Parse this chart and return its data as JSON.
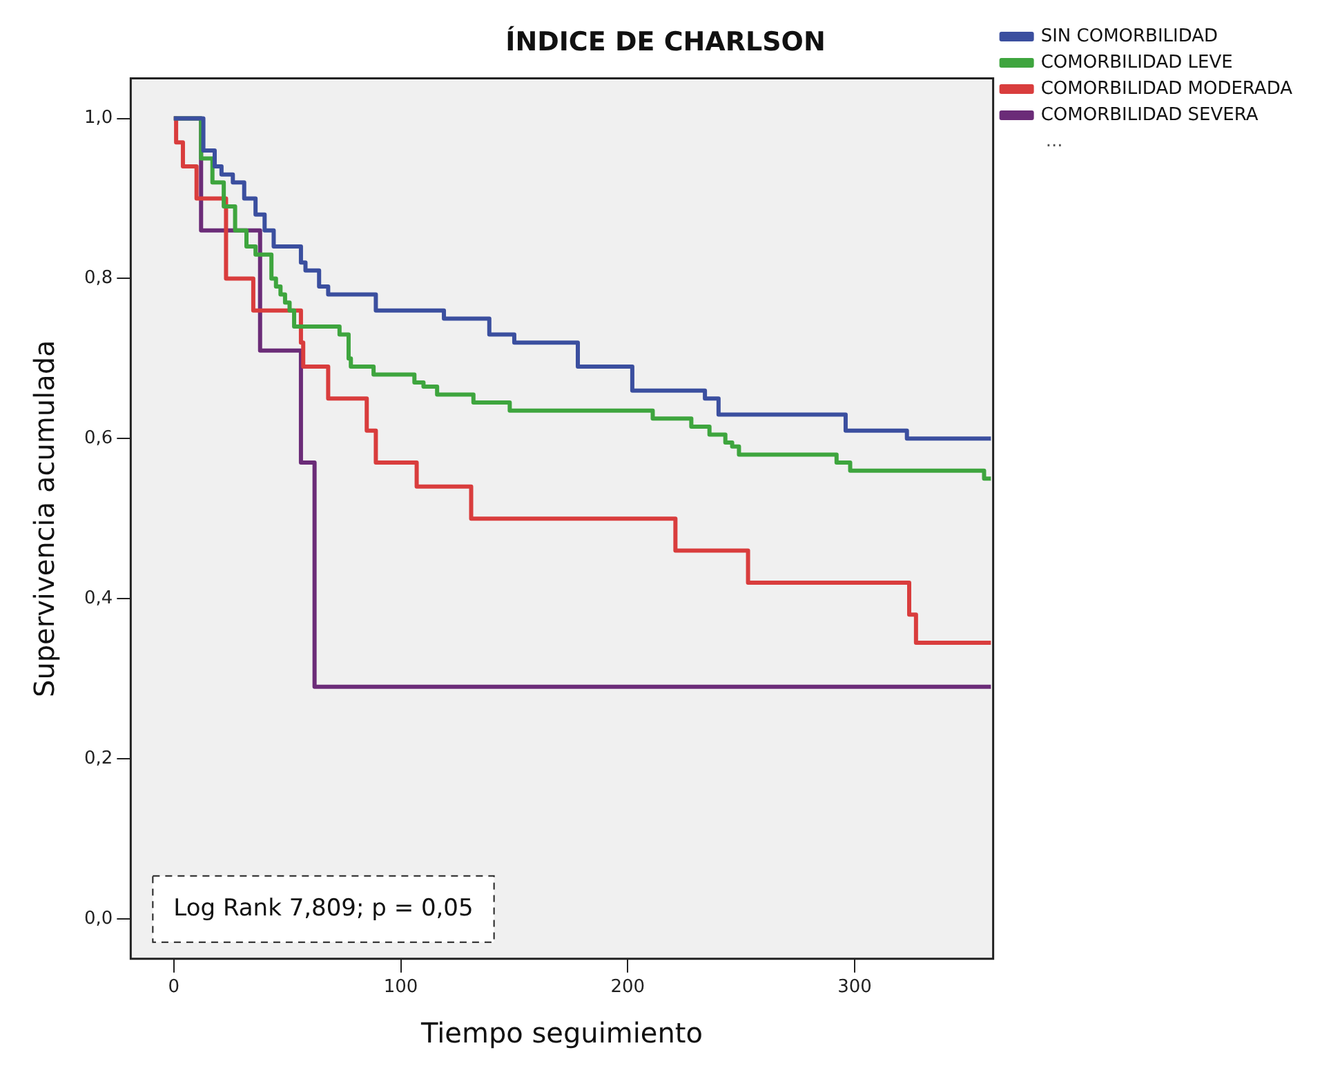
{
  "chart_data": {
    "type": "step",
    "title": "ÍNDICE DE CHARLSON",
    "xlabel": "Tiempo seguimiento",
    "ylabel": "Supervivencia acumulada",
    "xlim": [
      -19,
      361
    ],
    "xticks": [
      0,
      100,
      200,
      300
    ],
    "ylim": [
      -0.05,
      1.05
    ],
    "yticks": [
      {
        "value": 0,
        "label": "0,0"
      },
      {
        "value": 0.2,
        "label": "0,2"
      },
      {
        "value": 0.4,
        "label": "0,4"
      },
      {
        "value": 0.6,
        "label": "0,6"
      },
      {
        "value": 0.8,
        "label": "0,8"
      },
      {
        "value": 1,
        "label": "1,0"
      }
    ],
    "legend": "top right",
    "marker": "none",
    "line_style": "solid",
    "annotations": [
      "Log Rank 7,809; p = 0,05",
      "..."
    ],
    "series": [
      {
        "name": "SIN COMORBILIDAD",
        "color": "#3b4f9f",
        "x": [
          0,
          13,
          18,
          21,
          26,
          31,
          36,
          40,
          44,
          56,
          58,
          64,
          68,
          89,
          119,
          139,
          150,
          178,
          202,
          234,
          240,
          296,
          323,
          360
        ],
        "values": [
          1,
          0.96,
          0.94,
          0.93,
          0.92,
          0.9,
          0.88,
          0.86,
          0.84,
          0.82,
          0.81,
          0.79,
          0.78,
          0.76,
          0.75,
          0.73,
          0.72,
          0.69,
          0.66,
          0.65,
          0.63,
          0.61,
          0.6,
          0.6
        ]
      },
      {
        "name": "COMORBILIDAD LEVE",
        "color": "#3ea53e",
        "x": [
          0,
          12,
          17,
          22,
          27,
          32,
          36,
          43,
          45,
          47,
          49,
          51,
          53,
          73,
          77,
          78,
          88,
          106,
          110,
          116,
          132,
          148,
          211,
          228,
          236,
          243,
          246,
          249,
          292,
          298,
          357,
          360
        ],
        "values": [
          1,
          0.95,
          0.92,
          0.89,
          0.86,
          0.84,
          0.83,
          0.8,
          0.79,
          0.78,
          0.77,
          0.76,
          0.74,
          0.73,
          0.7,
          0.69,
          0.68,
          0.67,
          0.665,
          0.655,
          0.645,
          0.635,
          0.625,
          0.615,
          0.605,
          0.595,
          0.59,
          0.58,
          0.57,
          0.56,
          0.55,
          0.55
        ]
      },
      {
        "name": "COMORBILIDAD MODERADA",
        "color": "#d93d3d",
        "x": [
          0,
          1,
          4,
          10,
          23,
          35,
          56,
          57,
          68,
          85,
          89,
          107,
          131,
          221,
          253,
          324,
          327,
          360
        ],
        "values": [
          1,
          0.97,
          0.94,
          0.9,
          0.8,
          0.76,
          0.72,
          0.69,
          0.65,
          0.61,
          0.57,
          0.54,
          0.5,
          0.46,
          0.42,
          0.38,
          0.345,
          0.345
        ]
      },
      {
        "name": "COMORBILIDAD SEVERA",
        "color": "#6b2c78",
        "x": [
          0,
          12,
          38,
          56,
          62,
          360
        ],
        "values": [
          1,
          0.86,
          0.71,
          0.57,
          0.29,
          0.29
        ]
      }
    ]
  }
}
